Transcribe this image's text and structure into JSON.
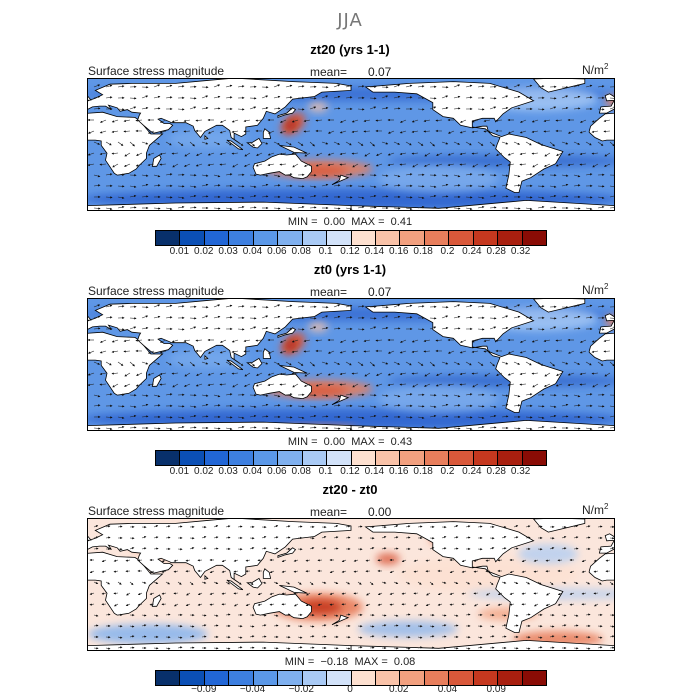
{
  "title": "JJA",
  "palette_main": [
    "#08306b",
    "#0b4fb5",
    "#2166d6",
    "#3d7fe0",
    "#5b98e8",
    "#7fb0ef",
    "#a9caf5",
    "#d2e2f9",
    "#fde0d0",
    "#f9c2a8",
    "#f2a07f",
    "#e87e5c",
    "#d9583a",
    "#c5381f",
    "#a81f0f",
    "#8a0c05"
  ],
  "palette_diff": [
    "#08306b",
    "#0b4fb5",
    "#2166d6",
    "#3d7fe0",
    "#5b98e8",
    "#7fb0ef",
    "#a9caf5",
    "#d2e2f9",
    "#fde0d0",
    "#f9c2a8",
    "#f2a07f",
    "#e87e5c",
    "#d9583a",
    "#c5381f",
    "#a81f0f",
    "#8a0c05"
  ],
  "panels": [
    {
      "title": "zt20 (yrs 1-1)",
      "variable": "Surface stress magnitude",
      "mean_label": "mean=",
      "mean_value": "0.07",
      "units": "N/m",
      "units_sup": "2",
      "min_label": "MIN =",
      "min_value": "0.00",
      "max_label": "MAX =",
      "max_value": "0.41",
      "ticks": [
        "0.01",
        "0.02",
        "0.03",
        "0.04",
        "0.06",
        "0.08",
        "0.1",
        "0.12",
        "0.14",
        "0.16",
        "0.18",
        "0.2",
        "0.24",
        "0.28",
        "0.32"
      ]
    },
    {
      "title": "zt0 (yrs 1-1)",
      "variable": "Surface stress magnitude",
      "mean_label": "mean=",
      "mean_value": "0.07",
      "units": "N/m",
      "units_sup": "2",
      "min_label": "MIN =",
      "min_value": "0.00",
      "max_label": "MAX =",
      "max_value": "0.43",
      "ticks": [
        "0.01",
        "0.02",
        "0.03",
        "0.04",
        "0.06",
        "0.08",
        "0.1",
        "0.12",
        "0.14",
        "0.16",
        "0.18",
        "0.2",
        "0.24",
        "0.28",
        "0.32"
      ]
    },
    {
      "title": "zt20 - zt0",
      "variable": "Surface stress magnitude",
      "mean_label": "mean=",
      "mean_value": "0.00",
      "units": "N/m",
      "units_sup": "2",
      "min_label": "MIN =",
      "min_value": "−0.18",
      "max_label": "MAX =",
      "max_value": "0.08",
      "ticks": [
        "−0.09",
        "−0.04",
        "−0.02",
        "0",
        "0.02",
        "0.04",
        "0.09"
      ]
    }
  ]
}
